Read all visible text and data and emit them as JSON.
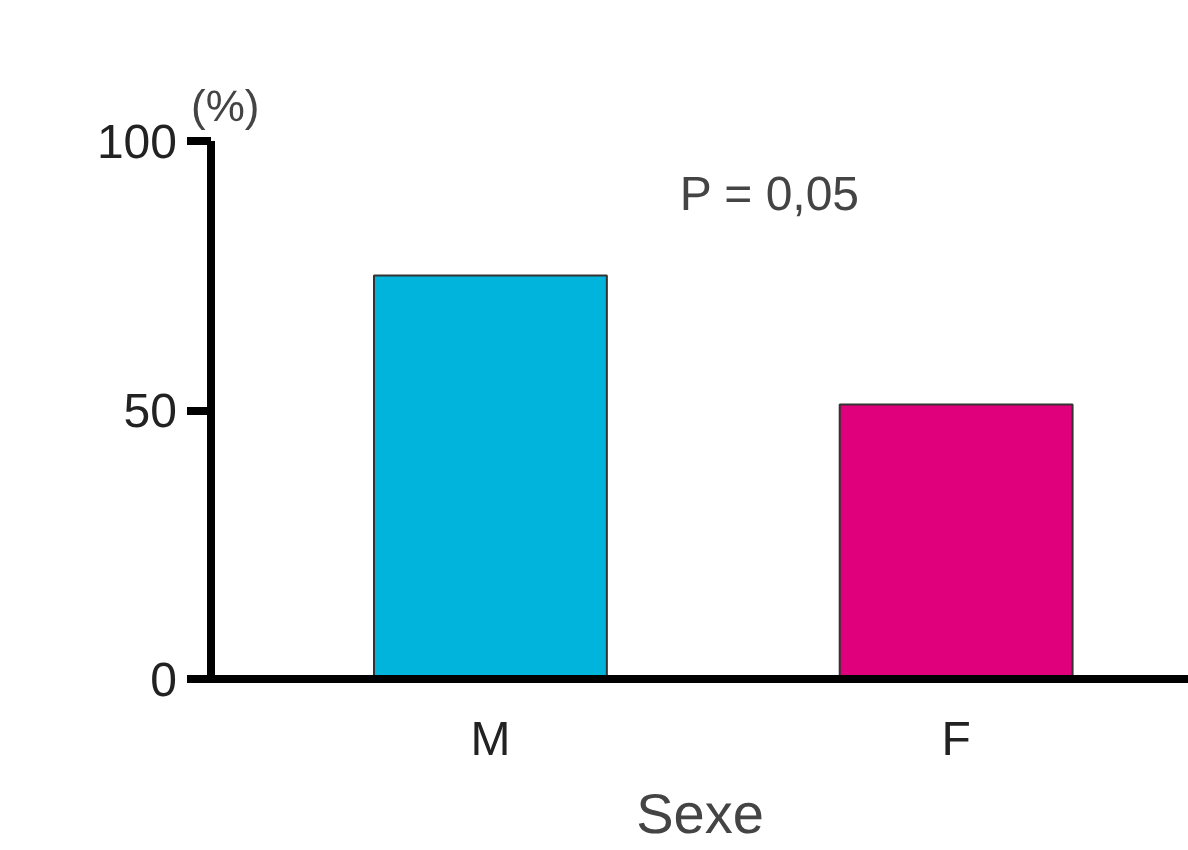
{
  "chart_data": {
    "type": "bar",
    "ylabel": "(%)",
    "xlabel": "Sexe",
    "categories": [
      "M",
      "F"
    ],
    "values": [
      75,
      51
    ],
    "colors": [
      "#00b4dc",
      "#e0007c"
    ],
    "ylim": [
      0,
      100
    ],
    "yticks": [
      0,
      50,
      100
    ],
    "grid": false,
    "annotations": [
      "P = 0,05"
    ]
  }
}
